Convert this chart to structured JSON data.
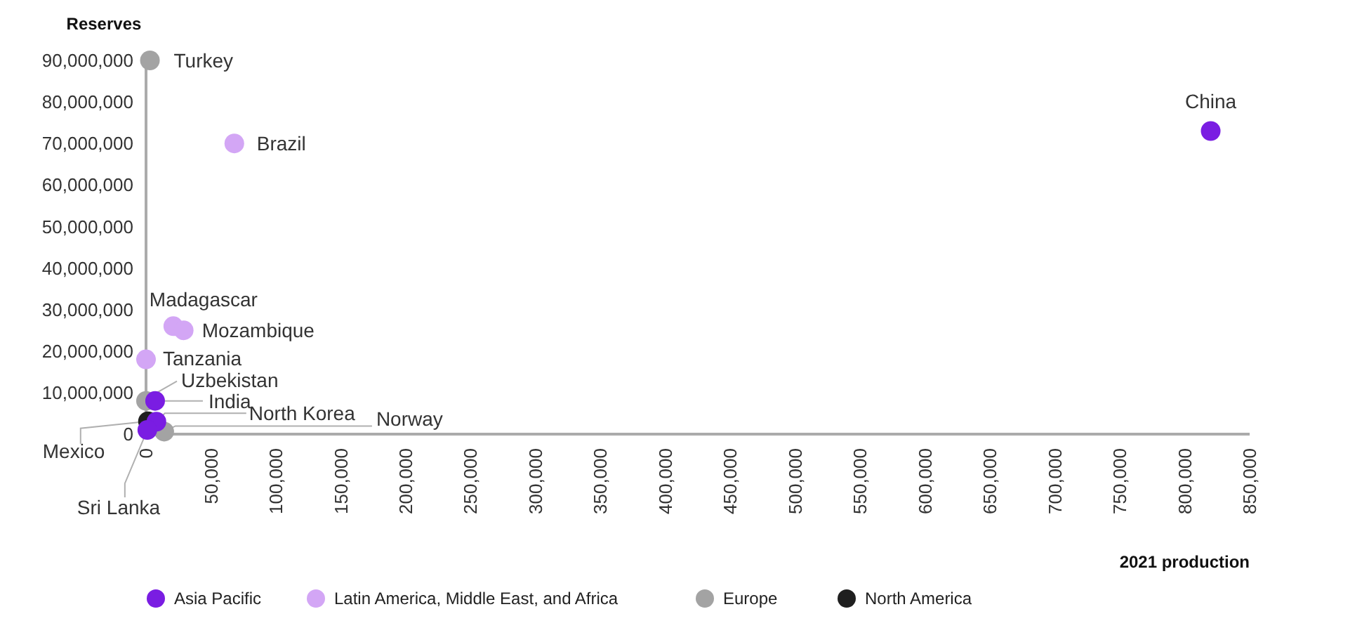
{
  "chart_data": {
    "type": "scatter",
    "xlabel": "2021 production",
    "ylabel": "Reserves",
    "xlim": [
      0,
      850000
    ],
    "ylim": [
      0,
      90000000
    ],
    "xticks": [
      {
        "value": 0,
        "label": "0"
      },
      {
        "value": 50000,
        "label": "50,000"
      },
      {
        "value": 100000,
        "label": "100,000"
      },
      {
        "value": 150000,
        "label": "150,000"
      },
      {
        "value": 200000,
        "label": "200,000"
      },
      {
        "value": 250000,
        "label": "250,000"
      },
      {
        "value": 300000,
        "label": "300,000"
      },
      {
        "value": 350000,
        "label": "350,000"
      },
      {
        "value": 400000,
        "label": "400,000"
      },
      {
        "value": 450000,
        "label": "450,000"
      },
      {
        "value": 500000,
        "label": "500,000"
      },
      {
        "value": 550000,
        "label": "550,000"
      },
      {
        "value": 600000,
        "label": "600,000"
      },
      {
        "value": 650000,
        "label": "650,000"
      },
      {
        "value": 700000,
        "label": "700,000"
      },
      {
        "value": 750000,
        "label": "750,000"
      },
      {
        "value": 800000,
        "label": "800,000"
      },
      {
        "value": 850000,
        "label": "850,000"
      }
    ],
    "yticks": [
      {
        "value": 0,
        "label": "0"
      },
      {
        "value": 10000000,
        "label": "10,000,000"
      },
      {
        "value": 20000000,
        "label": "20,000,000"
      },
      {
        "value": 30000000,
        "label": "30,000,000"
      },
      {
        "value": 40000000,
        "label": "40,000,000"
      },
      {
        "value": 50000000,
        "label": "50,000,000"
      },
      {
        "value": 60000000,
        "label": "60,000,000"
      },
      {
        "value": 70000000,
        "label": "70,000,000"
      },
      {
        "value": 80000000,
        "label": "80,000,000"
      },
      {
        "value": 90000000,
        "label": "90,000,000"
      }
    ],
    "grid": false,
    "legend": "bottom",
    "marker": "circle",
    "series": [
      {
        "name": "Asia Pacific",
        "color": "#7a1de2",
        "x": [
          820000,
          7000,
          8000,
          1000
        ],
        "values": [
          73000000,
          8000000,
          3000000,
          1000000
        ]
      },
      {
        "name": "Latin America, Middle East, and Africa",
        "color": "#d3a6f5",
        "x": [
          68000,
          21000,
          29000,
          0
        ],
        "values": [
          70000000,
          26000000,
          25000000,
          18000000
        ]
      },
      {
        "name": "Europe",
        "color": "#a3a3a3",
        "x": [
          3000,
          0,
          14000
        ],
        "values": [
          90000000,
          8000000,
          600000
        ]
      },
      {
        "name": "North America",
        "color": "#1f1f1f",
        "x": [
          1500
        ],
        "values": [
          3100000
        ]
      }
    ],
    "annotations": [
      {
        "text": "China",
        "x": 820000,
        "y": 73000000
      },
      {
        "text": "Turkey",
        "x": 3000,
        "y": 90000000
      },
      {
        "text": "Brazil",
        "x": 68000,
        "y": 70000000
      },
      {
        "text": "Madagascar",
        "x": 21000,
        "y": 26000000
      },
      {
        "text": "Mozambique",
        "x": 29000,
        "y": 25000000
      },
      {
        "text": "Tanzania",
        "x": 0,
        "y": 18000000
      },
      {
        "text": "Uzbekistan",
        "x": 0,
        "y": 8000000
      },
      {
        "text": "India",
        "x": 7000,
        "y": 8000000
      },
      {
        "text": "North Korea",
        "x": 8000,
        "y": 3000000
      },
      {
        "text": "Norway",
        "x": 14000,
        "y": 600000
      },
      {
        "text": "Mexico",
        "x": 1500,
        "y": 3100000
      },
      {
        "text": "Sri Lanka",
        "x": 1000,
        "y": 1000000
      }
    ]
  }
}
